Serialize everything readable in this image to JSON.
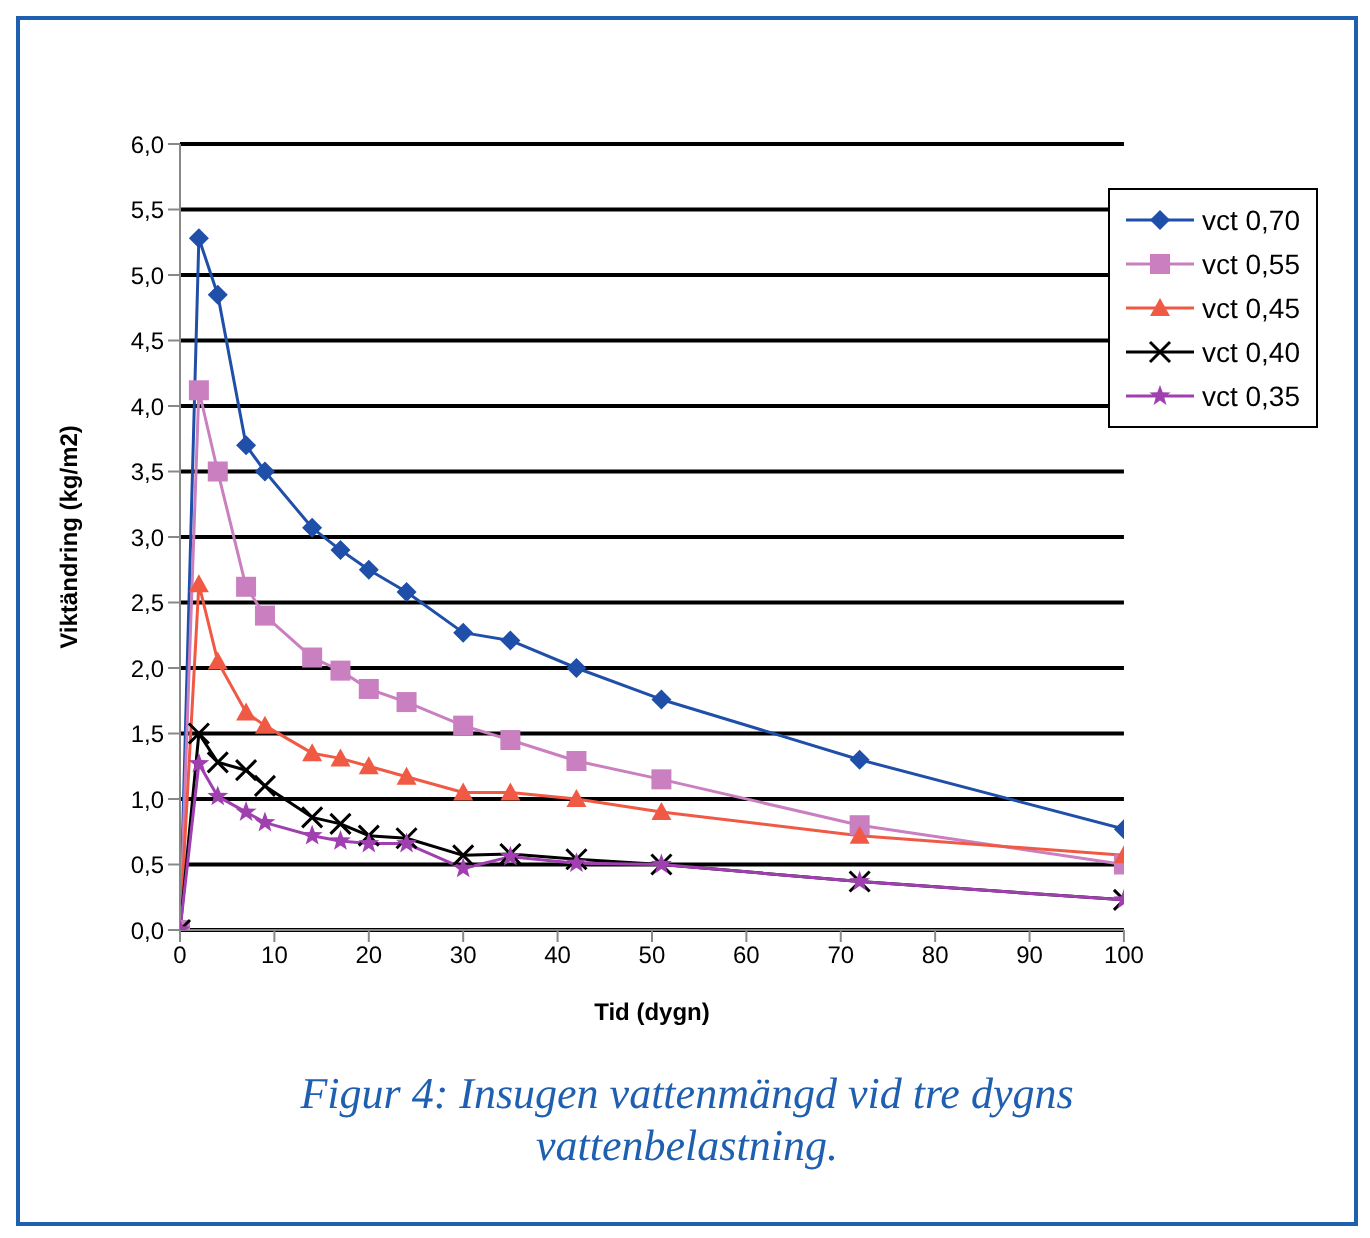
{
  "chart_data": {
    "type": "line",
    "title": "Figur 4: Insugen vattenmängd vid tre dygns vattenbelastning.",
    "xlabel": "Tid (dygn)",
    "ylabel": "Viktändring (kg/m2)",
    "x": [
      0,
      2,
      4,
      7,
      9,
      14,
      17,
      20,
      24,
      30,
      35,
      42,
      51,
      72,
      100
    ],
    "series": [
      {
        "name": "vct 0,70",
        "color": "#1f4fa8",
        "marker": "diamond",
        "values": [
          0,
          5.28,
          4.85,
          3.7,
          3.5,
          3.07,
          2.9,
          2.75,
          2.58,
          2.27,
          2.21,
          2.0,
          1.76,
          1.3,
          0.77
        ]
      },
      {
        "name": "vct 0,55",
        "color": "#c97fc0",
        "marker": "square",
        "values": [
          0,
          4.12,
          3.5,
          2.62,
          2.4,
          2.08,
          1.98,
          1.84,
          1.74,
          1.56,
          1.45,
          1.29,
          1.15,
          0.8,
          0.5
        ]
      },
      {
        "name": "vct 0,45",
        "color": "#f05a45",
        "marker": "triangle",
        "values": [
          0,
          2.64,
          2.05,
          1.66,
          1.56,
          1.35,
          1.31,
          1.25,
          1.17,
          1.05,
          1.05,
          1.0,
          0.9,
          0.72,
          0.57
        ]
      },
      {
        "name": "vct 0,40",
        "color": "#000000",
        "marker": "cross",
        "values": [
          0,
          1.5,
          1.28,
          1.22,
          1.1,
          0.86,
          0.81,
          0.72,
          0.7,
          0.57,
          0.58,
          0.54,
          0.5,
          0.37,
          0.23
        ]
      },
      {
        "name": "vct 0,35",
        "color": "#a040b0",
        "marker": "star",
        "values": [
          0,
          1.27,
          1.02,
          0.9,
          0.82,
          0.72,
          0.68,
          0.66,
          0.66,
          0.47,
          0.56,
          0.51,
          0.5,
          0.37,
          0.23
        ]
      }
    ],
    "xlim": [
      0,
      100
    ],
    "xticks": [
      0,
      10,
      20,
      30,
      40,
      50,
      60,
      70,
      80,
      90,
      100
    ],
    "ylim": [
      0,
      6
    ],
    "yticks": [
      {
        "value": 0,
        "label": "0,0"
      },
      {
        "value": 0.5,
        "label": "0,5"
      },
      {
        "value": 1,
        "label": "1,0"
      },
      {
        "value": 1.5,
        "label": "1,5"
      },
      {
        "value": 2,
        "label": "2,0"
      },
      {
        "value": 2.5,
        "label": "2,5"
      },
      {
        "value": 3,
        "label": "3,0"
      },
      {
        "value": 3.5,
        "label": "3,5"
      },
      {
        "value": 4,
        "label": "4,0"
      },
      {
        "value": 4.5,
        "label": "4,5"
      },
      {
        "value": 5,
        "label": "5,0"
      },
      {
        "value": 5.5,
        "label": "5,5"
      },
      {
        "value": 6,
        "label": "6,0"
      }
    ],
    "grid": "y",
    "legend": "top right",
    "line_style": "solid"
  }
}
